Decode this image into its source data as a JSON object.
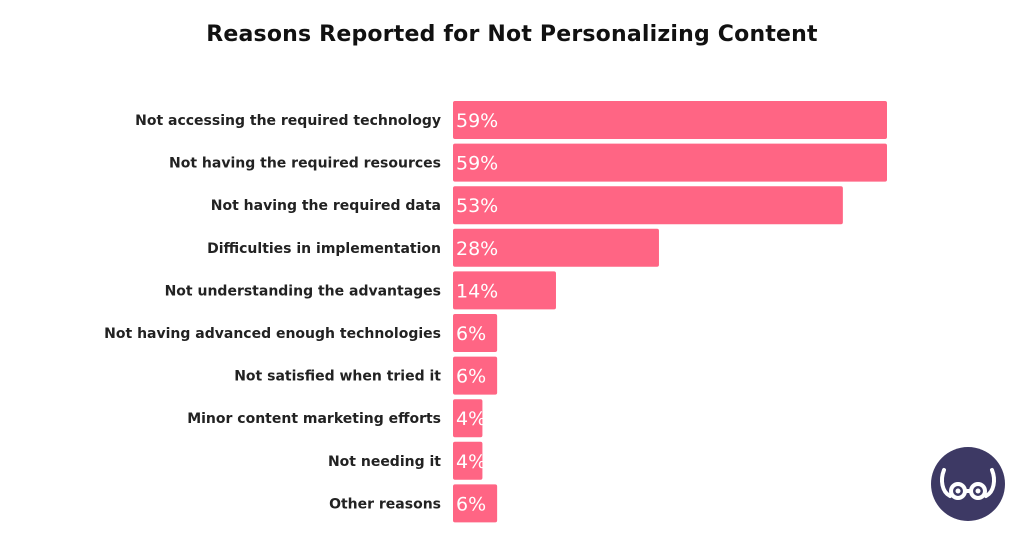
{
  "colors": {
    "bar": "#ff6584",
    "logo_bg": "#3d3964",
    "logo_fg": "#ffffff"
  },
  "icons": {
    "logo": "owl-eyes-logo-icon"
  },
  "chart_data": {
    "type": "bar",
    "orientation": "horizontal",
    "title": "Reasons Reported for Not Personalizing Content",
    "xlabel": "",
    "ylabel": "",
    "xlim": [
      0,
      59
    ],
    "grid": false,
    "categories": [
      "Not accessing the required technology",
      "Not having the required resources",
      "Not having the required data",
      "Difficulties in implementation",
      "Not understanding the advantages",
      "Not having advanced enough technologies",
      "Not satisfied when tried it",
      "Minor content marketing efforts",
      "Not needing it",
      "Other reasons"
    ],
    "values": [
      59,
      59,
      53,
      28,
      14,
      6,
      6,
      4,
      4,
      6
    ],
    "value_labels": [
      "59%",
      "59%",
      "53%",
      "28%",
      "14%",
      "6%",
      "6%",
      "4%",
      "4%",
      "6%"
    ]
  }
}
